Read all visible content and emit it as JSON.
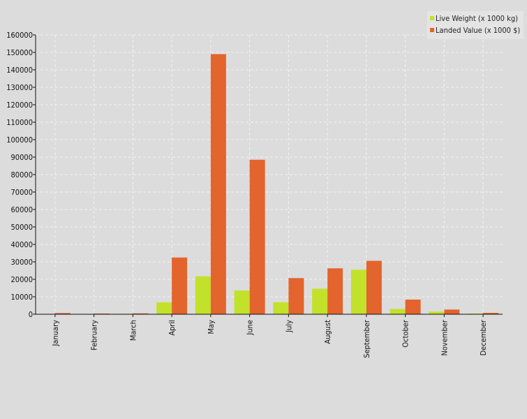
{
  "chart_data": {
    "type": "bar",
    "title": "",
    "xlabel": "",
    "ylabel": "",
    "categories": [
      "January",
      "February",
      "March",
      "April",
      "May",
      "June",
      "July",
      "August",
      "September",
      "October",
      "November",
      "December"
    ],
    "series": [
      {
        "name": "Live Weight (x 1000 kg)",
        "color": "#c2e12b",
        "values": [
          200,
          200,
          300,
          6800,
          21700,
          13600,
          6900,
          14600,
          25500,
          3000,
          1500,
          400
        ]
      },
      {
        "name": "Landed Value (x 1000 $)",
        "color": "#e3642c",
        "values": [
          700,
          400,
          500,
          32500,
          149000,
          88500,
          20700,
          26300,
          30600,
          8400,
          2700,
          800
        ]
      }
    ],
    "ylim": [
      0,
      160000
    ],
    "yticks": [
      0,
      10000,
      20000,
      30000,
      40000,
      50000,
      60000,
      70000,
      80000,
      90000,
      100000,
      110000,
      120000,
      130000,
      140000,
      150000,
      160000
    ],
    "grid": true,
    "legend_position": "top-right"
  }
}
